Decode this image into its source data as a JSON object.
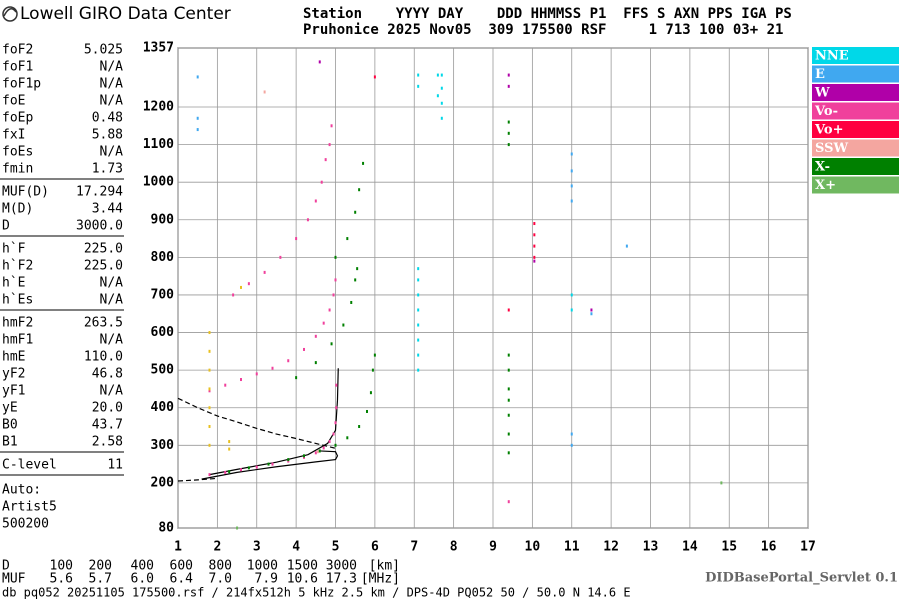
{
  "header": {
    "logo": "Lowell GIRO Data Center",
    "line1": "Station    YYYY DAY    DDD HHMMSS P1  FFS S AXN PPS IGA PS",
    "line2": "Pruhonice 2025 Nov05  309 175500 RSF     1 713 100 03+ 21"
  },
  "params": [
    [
      [
        "foF2",
        "5.025"
      ],
      [
        "foF1",
        "N/A"
      ],
      [
        "foF1p",
        "N/A"
      ],
      [
        "foE",
        "N/A"
      ],
      [
        "foEp",
        "0.48"
      ],
      [
        "fxI",
        "5.88"
      ],
      [
        "foEs",
        "N/A"
      ],
      [
        "fmin",
        "1.73"
      ]
    ],
    [
      [
        "MUF(D)",
        "17.294"
      ],
      [
        "M(D)",
        "3.44"
      ],
      [
        "D",
        "3000.0"
      ]
    ],
    [
      [
        "h`F",
        "225.0"
      ],
      [
        "h`F2",
        "225.0"
      ],
      [
        "h`E",
        "N/A"
      ],
      [
        "h`Es",
        "N/A"
      ]
    ],
    [
      [
        "hmF2",
        "263.5"
      ],
      [
        "hmF1",
        "N/A"
      ],
      [
        "hmE",
        "110.0"
      ],
      [
        "yF2",
        "46.8"
      ],
      [
        "yF1",
        "N/A"
      ],
      [
        "yE",
        "20.0"
      ],
      [
        "B0",
        "43.7"
      ],
      [
        "B1",
        "2.58"
      ]
    ],
    [
      [
        "C-level",
        "11"
      ]
    ]
  ],
  "auto": [
    "Auto:",
    "Artist5",
    "500200"
  ],
  "dmuf": [
    [
      "D",
      "100",
      "200",
      "400",
      "600",
      "800",
      "1000",
      "1500",
      "3000",
      "[km]"
    ],
    [
      "MUF",
      "5.6",
      "5.7",
      "6.0",
      "6.4",
      "7.0",
      "7.9",
      "10.6",
      "17.3",
      "[MHz]"
    ]
  ],
  "footer": {
    "servlet": "DIDBasePortal_Servlet 0.1",
    "info": "db pq052 20251105 175500.rsf / 214fx512h 5 kHz 2.5 km / DPS-4D PQ052 50 / 50.0 N 14.6 E"
  },
  "chart_data": {
    "type": "scatter",
    "xlim": [
      1,
      17
    ],
    "ylim": [
      80,
      1357
    ],
    "xticks": [
      1,
      2,
      3,
      4,
      5,
      6,
      7,
      8,
      9,
      10,
      11,
      12,
      13,
      14,
      15,
      16,
      17
    ],
    "yticks": [
      80,
      200,
      300,
      400,
      500,
      600,
      700,
      800,
      900,
      1000,
      1100,
      1200,
      1357
    ],
    "grid": true,
    "series": [
      {
        "name": "NNE",
        "color": "#00d8e8",
        "x": [
          7.1,
          7.1,
          7.1,
          7.1,
          7.1,
          7.1,
          7.1,
          7.1,
          7.1,
          7.1,
          7.6,
          7.6,
          7.7,
          7.7,
          7.7,
          7.7,
          11.0,
          11.0
        ],
        "y": [
          500,
          540,
          580,
          620,
          660,
          700,
          740,
          770,
          1255,
          1285,
          1230,
          1285,
          1170,
          1210,
          1250,
          1285,
          700,
          660
        ]
      },
      {
        "name": "E",
        "color": "#40a8f0",
        "x": [
          1.5,
          1.5,
          1.5,
          11.0,
          11.0,
          11.0,
          11.0,
          11.0,
          11.0,
          11.5,
          12.4
        ],
        "y": [
          1140,
          1170,
          1280,
          950,
          990,
          1030,
          1075,
          300,
          330,
          650,
          830
        ]
      },
      {
        "name": "W",
        "color": "#b000a8",
        "x": [
          9.4,
          9.4,
          10.05,
          11.5,
          4.6
        ],
        "y": [
          1285,
          1255,
          790,
          660,
          1320
        ]
      },
      {
        "name": "Vo-",
        "color": "#f0409c",
        "x": [
          1.8,
          2.2,
          2.6,
          3.0,
          3.4,
          3.8,
          4.2,
          4.5,
          4.7,
          4.85,
          4.95,
          5.0,
          5.02,
          5.02,
          1.8,
          2.2,
          2.6,
          3.0,
          3.4,
          3.8,
          4.2,
          4.5,
          4.7,
          4.85,
          4.95,
          5.0,
          2.4,
          2.8,
          3.2,
          3.6,
          4.0,
          4.3,
          4.5,
          4.65,
          4.75,
          4.85,
          4.9,
          9.4
        ],
        "y": [
          222,
          228,
          235,
          242,
          250,
          258,
          268,
          280,
          293,
          310,
          330,
          360,
          400,
          460,
          445,
          460,
          475,
          490,
          505,
          525,
          555,
          590,
          625,
          660,
          700,
          740,
          700,
          730,
          760,
          800,
          850,
          900,
          950,
          1000,
          1060,
          1100,
          1150,
          150
        ]
      },
      {
        "name": "Vo+",
        "color": "#ff0040",
        "x": [
          10.05,
          10.05,
          10.05,
          10.05,
          9.4,
          6.0
        ],
        "y": [
          800,
          830,
          860,
          890,
          660,
          1280
        ]
      },
      {
        "name": "SSW",
        "color": "#f4a6a0",
        "x": [
          4.55,
          3.2
        ],
        "y": [
          283,
          1240
        ]
      },
      {
        "name": "X-",
        "color": "#008000",
        "x": [
          2.3,
          2.8,
          3.3,
          3.8,
          4.2,
          4.6,
          5.0,
          5.3,
          5.6,
          5.8,
          5.9,
          5.95,
          6.0,
          4.0,
          4.5,
          4.9,
          5.2,
          5.4,
          5.5,
          5.55,
          5.0,
          5.3,
          5.5,
          5.6,
          5.7,
          9.4,
          9.4,
          9.4,
          9.4,
          9.4,
          9.4,
          9.4,
          9.4,
          9.4,
          9.4
        ],
        "y": [
          230,
          240,
          250,
          262,
          272,
          285,
          300,
          320,
          350,
          390,
          440,
          500,
          540,
          480,
          520,
          570,
          620,
          680,
          740,
          770,
          800,
          850,
          920,
          980,
          1050,
          280,
          330,
          380,
          420,
          450,
          500,
          540,
          1100,
          1130,
          1160
        ]
      },
      {
        "name": "X+",
        "color": "#70b860",
        "x": [
          2.5,
          14.8
        ],
        "y": [
          80,
          200
        ]
      },
      {
        "color": "#e8c020",
        "x": [
          1.8,
          1.8,
          1.8,
          1.8,
          1.8,
          1.8,
          1.8,
          2.3,
          2.3,
          2.6
        ],
        "y": [
          300,
          350,
          400,
          450,
          500,
          550,
          600,
          290,
          310,
          720
        ]
      }
    ],
    "lines": [
      {
        "color": "#000",
        "dash": false,
        "x": [
          1.6,
          2.5,
          3.5,
          4.5,
          5.0,
          5.05,
          5.0,
          4.6
        ],
        "y": [
          210,
          228,
          243,
          256,
          262,
          272,
          283,
          285
        ]
      },
      {
        "color": "#000",
        "dash": false,
        "x": [
          1.8,
          2.5,
          3.5,
          4.3,
          4.8,
          5.0,
          5.05,
          5.07
        ],
        "y": [
          222,
          236,
          255,
          275,
          305,
          340,
          420,
          505
        ]
      },
      {
        "color": "#000",
        "dash": true,
        "x": [
          1,
          1.5,
          2,
          2.5,
          3,
          3.5,
          4,
          4.5,
          5
        ],
        "y": [
          425,
          400,
          378,
          362,
          345,
          330,
          318,
          305,
          292
        ]
      },
      {
        "color": "#000",
        "dash": true,
        "x": [
          1,
          1.5,
          2
        ],
        "y": [
          205,
          208,
          212
        ]
      }
    ]
  }
}
